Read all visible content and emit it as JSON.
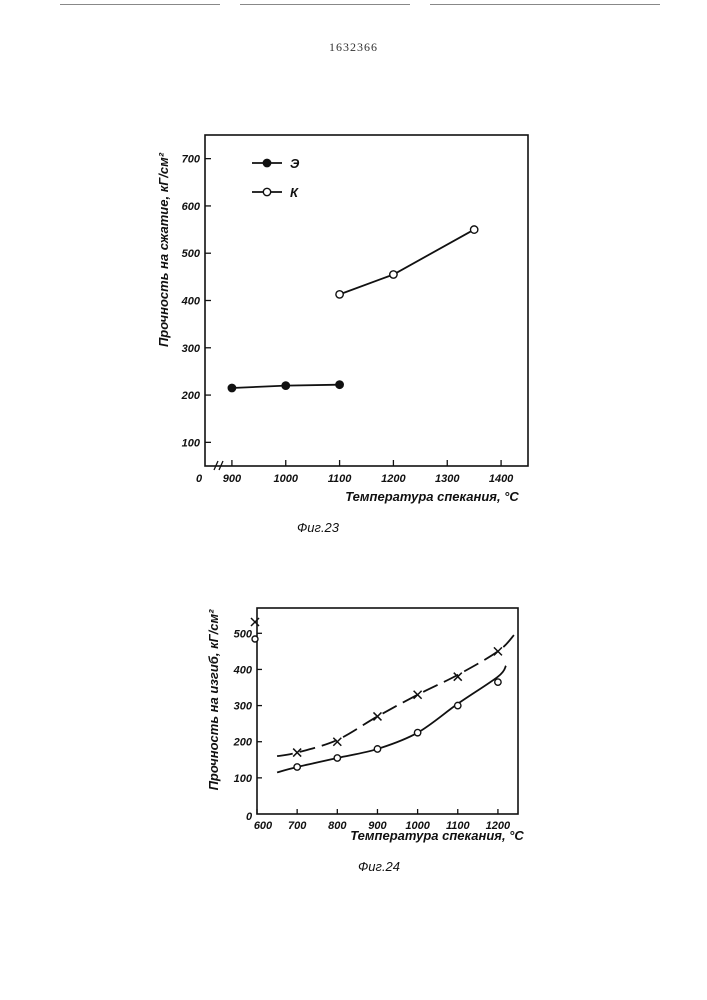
{
  "document": {
    "patent_number": "1632366"
  },
  "chart_data": [
    {
      "id": "fig23",
      "type": "line",
      "caption": "Фиг.23",
      "xlabel": "Температура спекания, °C",
      "ylabel": "Прочность на сжатие, кГ/см²",
      "origin_label": "0",
      "x_ticks": [
        900,
        1000,
        1100,
        1200,
        1300,
        1400
      ],
      "y_ticks": [
        100,
        200,
        300,
        400,
        500,
        600,
        700
      ],
      "xlim": [
        850,
        1450
      ],
      "ylim": [
        50,
        750
      ],
      "axis_break": true,
      "grid": false,
      "legend_position": "top-left",
      "series": [
        {
          "name": "Э",
          "marker": "filled-circle",
          "x": [
            900,
            1000,
            1100
          ],
          "y": [
            215,
            220,
            222
          ]
        },
        {
          "name": "К",
          "marker": "open-circle",
          "x": [
            1100,
            1200,
            1350
          ],
          "y": [
            413,
            455,
            550
          ]
        }
      ]
    },
    {
      "id": "fig24",
      "type": "line",
      "caption": "Фиг.24",
      "xlabel": "Температура спекания, °C",
      "ylabel": "Прочность на изгиб, кГ/см²",
      "origin_label": "0",
      "x_ticks": [
        600,
        700,
        800,
        900,
        1000,
        1100,
        1200
      ],
      "y_ticks": [
        100,
        200,
        300,
        400,
        500
      ],
      "xlim": [
        600,
        1250
      ],
      "ylim": [
        0,
        570
      ],
      "grid": false,
      "legend_position": "top-left",
      "series": [
        {
          "name": "",
          "marker": "cross",
          "line": "dashed",
          "x": [
            700,
            800,
            900,
            1000,
            1100,
            1200
          ],
          "y": [
            170,
            200,
            270,
            330,
            380,
            450
          ],
          "curve_x": [
            650,
            700,
            800,
            900,
            1000,
            1100,
            1200,
            1240
          ],
          "curve_y": [
            160,
            170,
            205,
            270,
            330,
            385,
            450,
            495
          ]
        },
        {
          "name": "",
          "marker": "open-circle",
          "line": "solid",
          "x": [
            700,
            800,
            900,
            1000,
            1100,
            1200
          ],
          "y": [
            130,
            155,
            180,
            225,
            300,
            365
          ],
          "curve_x": [
            650,
            700,
            800,
            900,
            1000,
            1100,
            1200,
            1220
          ],
          "curve_y": [
            115,
            130,
            155,
            180,
            225,
            305,
            380,
            410
          ]
        }
      ]
    }
  ]
}
